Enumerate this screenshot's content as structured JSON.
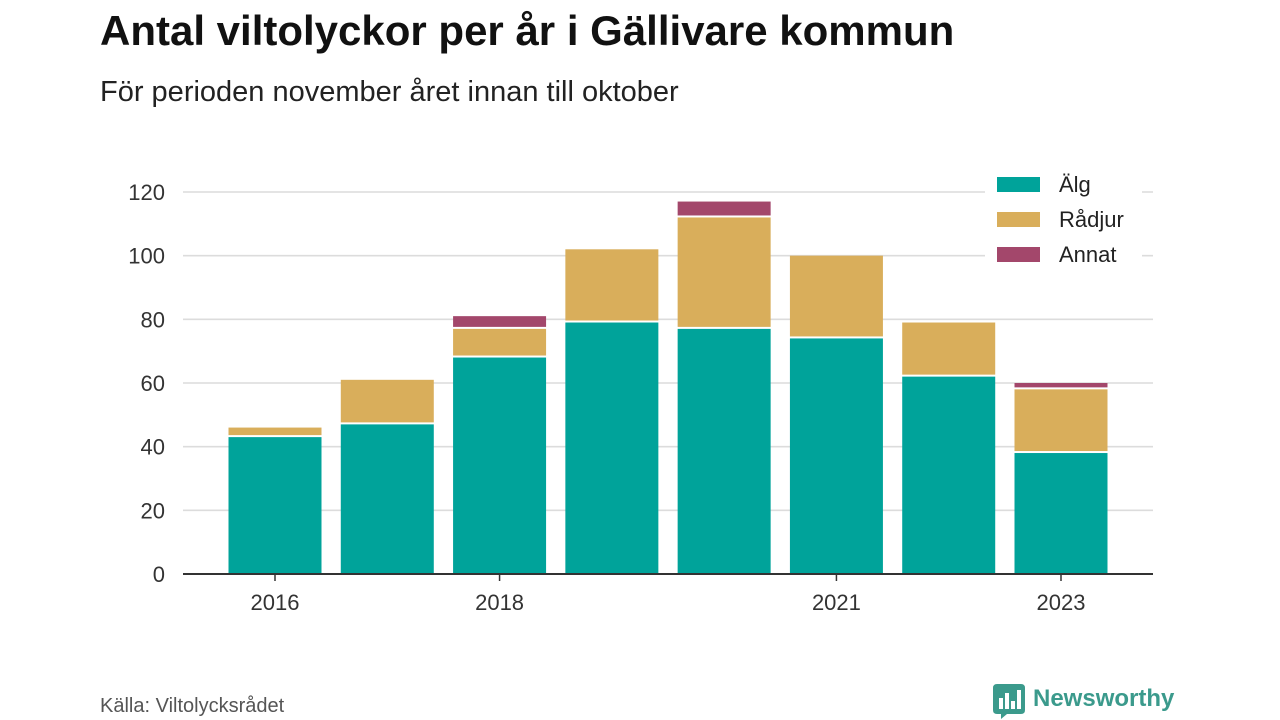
{
  "title": "Antal viltolyckor per år i Gällivare kommun",
  "subtitle": "För perioden november året innan till oktober",
  "source": "Källa: Viltolycksrådet",
  "brand": {
    "name": "Newsworthy",
    "icon": "newsworthy-logo-icon",
    "color": "#3b9a8c"
  },
  "chart_data": {
    "type": "bar",
    "stacked": true,
    "x": [
      2016,
      2017,
      2018,
      2019,
      2020,
      2021,
      2022,
      2023
    ],
    "xticks": [
      "2016",
      "2018",
      "2021",
      "2023"
    ],
    "ylim": [
      0,
      120
    ],
    "yticks": [
      0,
      20,
      40,
      60,
      80,
      100,
      120
    ],
    "grid": true,
    "legend_position": "top-right",
    "series": [
      {
        "name": "Älg",
        "color": "#00a39a",
        "values": [
          43,
          47,
          68,
          79,
          77,
          74,
          62,
          38
        ]
      },
      {
        "name": "Rådjur",
        "color": "#d9ae5b",
        "values": [
          3,
          14,
          9,
          23,
          35,
          26,
          17,
          20
        ]
      },
      {
        "name": "Annat",
        "color": "#a3476b",
        "values": [
          0,
          0,
          4,
          0,
          5,
          0,
          0,
          2
        ]
      }
    ]
  }
}
